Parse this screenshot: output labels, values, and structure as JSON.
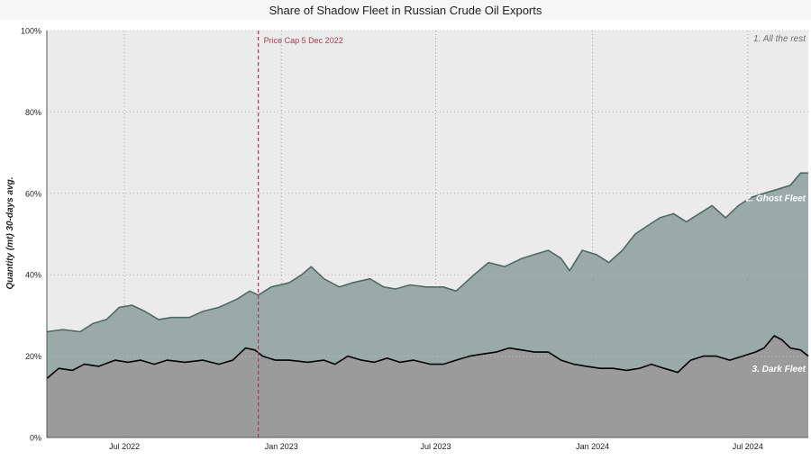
{
  "chart_data": {
    "type": "area",
    "title": "Share of Shadow Fleet in Russian Crude Oil Exports",
    "ylabel": "Quantity (mt) 30-days avg.",
    "xlabel": "",
    "ylim": [
      0,
      100
    ],
    "yticks": [
      "0%",
      "20%",
      "40%",
      "60%",
      "80%",
      "100%"
    ],
    "xlim": [
      "2022-04-01",
      "2024-09-10"
    ],
    "xticks": [
      {
        "date": "2022-07-01",
        "label": "Jul 2022"
      },
      {
        "date": "2023-01-01",
        "label": "Jan 2023"
      },
      {
        "date": "2023-07-01",
        "label": "Jul 2023"
      },
      {
        "date": "2024-01-01",
        "label": "Jan 2024"
      },
      {
        "date": "2024-07-01",
        "label": "Jul 2024"
      }
    ],
    "grid": true,
    "stacked": true,
    "annotation": {
      "date": "2022-12-05",
      "label": "Price Cap 5 Dec 2022",
      "color": "#b03a4e"
    },
    "series": [
      {
        "name": "1. All the rest",
        "color": "#ebebeb",
        "values_note": "remainder to 100%"
      },
      {
        "name": "2. Ghost Fleet",
        "color": "#9aaaa9",
        "line_color": "#4e6a62",
        "cumulative_points": [
          [
            "2022-04-01",
            26
          ],
          [
            "2022-04-20",
            26.5
          ],
          [
            "2022-05-10",
            26
          ],
          [
            "2022-05-25",
            28
          ],
          [
            "2022-06-10",
            29
          ],
          [
            "2022-06-25",
            32
          ],
          [
            "2022-07-10",
            32.5
          ],
          [
            "2022-07-25",
            31
          ],
          [
            "2022-08-10",
            29
          ],
          [
            "2022-08-25",
            29.5
          ],
          [
            "2022-09-15",
            29.5
          ],
          [
            "2022-10-01",
            31
          ],
          [
            "2022-10-20",
            32
          ],
          [
            "2022-11-10",
            34
          ],
          [
            "2022-11-25",
            36
          ],
          [
            "2022-12-05",
            35
          ],
          [
            "2022-12-20",
            37
          ],
          [
            "2023-01-10",
            38
          ],
          [
            "2023-01-25",
            40
          ],
          [
            "2023-02-05",
            42
          ],
          [
            "2023-02-20",
            39
          ],
          [
            "2023-03-10",
            37
          ],
          [
            "2023-03-25",
            38
          ],
          [
            "2023-04-15",
            39
          ],
          [
            "2023-05-01",
            37
          ],
          [
            "2023-05-15",
            36.5
          ],
          [
            "2023-06-01",
            37.5
          ],
          [
            "2023-06-20",
            37
          ],
          [
            "2023-07-10",
            37
          ],
          [
            "2023-07-25",
            36
          ],
          [
            "2023-08-15",
            40
          ],
          [
            "2023-09-01",
            43
          ],
          [
            "2023-09-20",
            42
          ],
          [
            "2023-10-10",
            44
          ],
          [
            "2023-10-25",
            45
          ],
          [
            "2023-11-10",
            46
          ],
          [
            "2023-11-25",
            44
          ],
          [
            "2023-12-05",
            41
          ],
          [
            "2023-12-20",
            46
          ],
          [
            "2024-01-05",
            45
          ],
          [
            "2024-01-20",
            43
          ],
          [
            "2024-02-05",
            46
          ],
          [
            "2024-02-20",
            50
          ],
          [
            "2024-03-05",
            52
          ],
          [
            "2024-03-20",
            54
          ],
          [
            "2024-04-05",
            55
          ],
          [
            "2024-04-20",
            53
          ],
          [
            "2024-05-05",
            55
          ],
          [
            "2024-05-20",
            57
          ],
          [
            "2024-06-05",
            54
          ],
          [
            "2024-06-20",
            57
          ],
          [
            "2024-07-05",
            59
          ],
          [
            "2024-07-20",
            60
          ],
          [
            "2024-08-05",
            61
          ],
          [
            "2024-08-20",
            62
          ],
          [
            "2024-09-01",
            65
          ],
          [
            "2024-09-10",
            65
          ]
        ]
      },
      {
        "name": "3. Dark Fleet",
        "color": "#9b9b9b",
        "line_color": "#000000",
        "points": [
          [
            "2022-04-01",
            14.5
          ],
          [
            "2022-04-15",
            17
          ],
          [
            "2022-05-01",
            16.5
          ],
          [
            "2022-05-15",
            18
          ],
          [
            "2022-06-01",
            17.5
          ],
          [
            "2022-06-20",
            19
          ],
          [
            "2022-07-05",
            18.5
          ],
          [
            "2022-07-20",
            19
          ],
          [
            "2022-08-05",
            18
          ],
          [
            "2022-08-20",
            19
          ],
          [
            "2022-09-10",
            18.5
          ],
          [
            "2022-10-01",
            19
          ],
          [
            "2022-10-20",
            18
          ],
          [
            "2022-11-05",
            19
          ],
          [
            "2022-11-20",
            22
          ],
          [
            "2022-12-01",
            21.5
          ],
          [
            "2022-12-10",
            20
          ],
          [
            "2022-12-25",
            19
          ],
          [
            "2023-01-10",
            19
          ],
          [
            "2023-02-01",
            18.5
          ],
          [
            "2023-02-20",
            19
          ],
          [
            "2023-03-05",
            18
          ],
          [
            "2023-03-20",
            20
          ],
          [
            "2023-04-05",
            19
          ],
          [
            "2023-04-20",
            18.5
          ],
          [
            "2023-05-05",
            19.5
          ],
          [
            "2023-05-20",
            18.5
          ],
          [
            "2023-06-05",
            19
          ],
          [
            "2023-06-25",
            18
          ],
          [
            "2023-07-10",
            18
          ],
          [
            "2023-07-25",
            19
          ],
          [
            "2023-08-10",
            20
          ],
          [
            "2023-08-25",
            20.5
          ],
          [
            "2023-09-10",
            21
          ],
          [
            "2023-09-25",
            22
          ],
          [
            "2023-10-10",
            21.5
          ],
          [
            "2023-10-25",
            21
          ],
          [
            "2023-11-10",
            21
          ],
          [
            "2023-11-25",
            19
          ],
          [
            "2023-12-10",
            18
          ],
          [
            "2023-12-25",
            17.5
          ],
          [
            "2024-01-10",
            17
          ],
          [
            "2024-01-25",
            17
          ],
          [
            "2024-02-10",
            16.5
          ],
          [
            "2024-02-25",
            17
          ],
          [
            "2024-03-10",
            18
          ],
          [
            "2024-03-25",
            17
          ],
          [
            "2024-04-10",
            16
          ],
          [
            "2024-04-25",
            19
          ],
          [
            "2024-05-10",
            20
          ],
          [
            "2024-05-25",
            20
          ],
          [
            "2024-06-10",
            19
          ],
          [
            "2024-06-25",
            20
          ],
          [
            "2024-07-10",
            21
          ],
          [
            "2024-07-20",
            22
          ],
          [
            "2024-08-01",
            25
          ],
          [
            "2024-08-10",
            24
          ],
          [
            "2024-08-20",
            22
          ],
          [
            "2024-09-01",
            21.5
          ],
          [
            "2024-09-10",
            20
          ]
        ]
      }
    ]
  }
}
